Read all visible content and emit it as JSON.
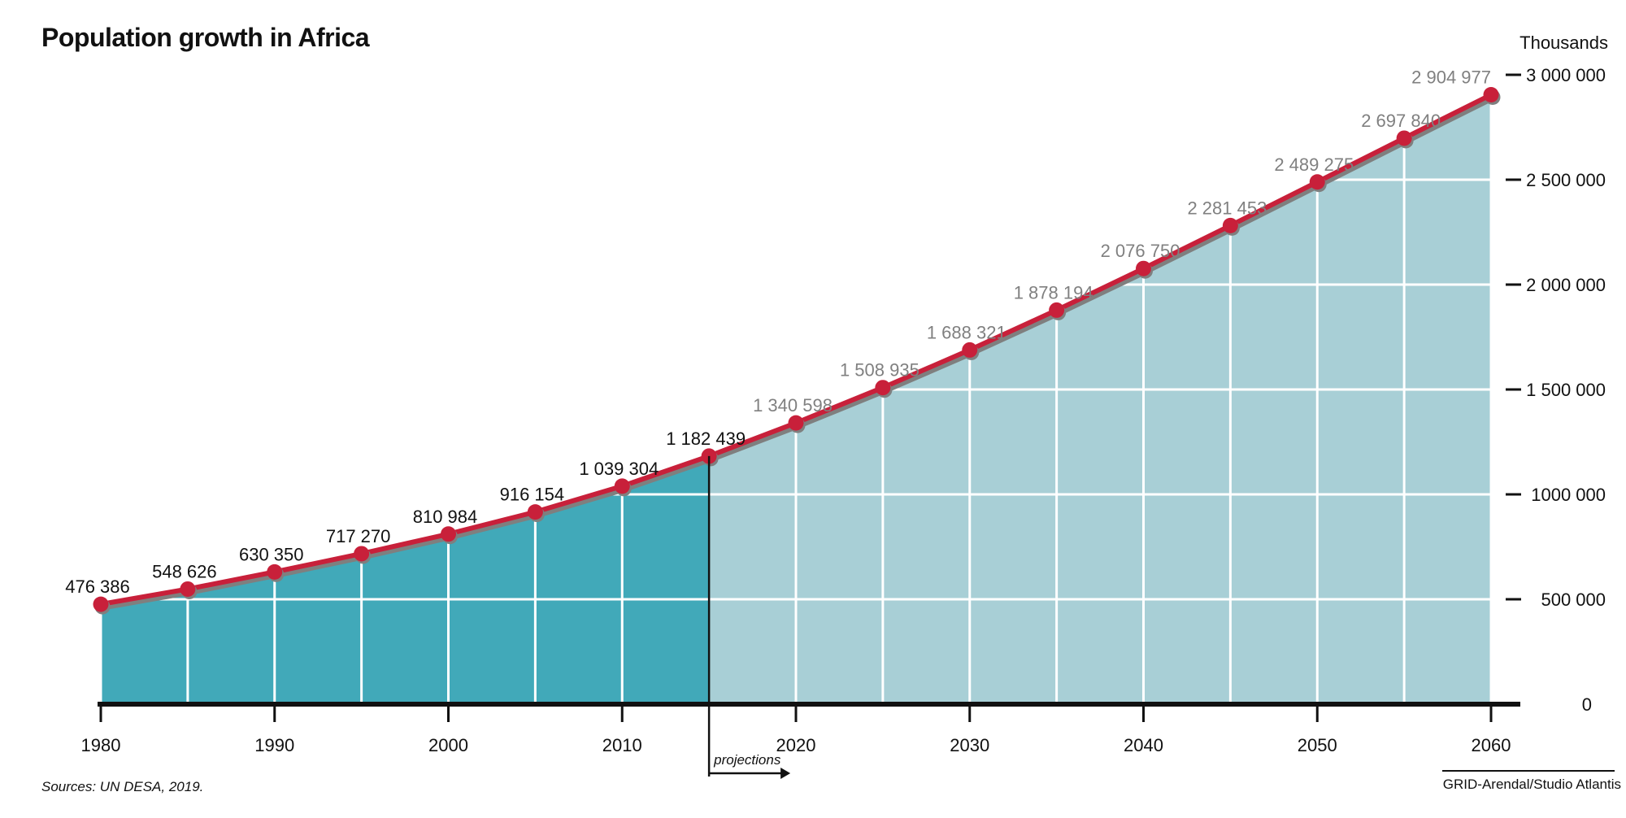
{
  "title": "Population growth in Africa",
  "source": "Sources: UN DESA, 2019.",
  "credit": "GRID-Arendal/Studio Atlantis",
  "colors": {
    "historical_area": "#41a9b9",
    "projection_area": "#a8cfd6",
    "line": "#c8203a",
    "line_shadow": "#7f7f7f",
    "historical_label": "#111111",
    "projection_label": "#808080"
  },
  "chart_data": {
    "type": "area",
    "x": [
      1980,
      1985,
      1990,
      1995,
      2000,
      2005,
      2010,
      2015,
      2020,
      2025,
      2030,
      2035,
      2040,
      2045,
      2050,
      2055,
      2060
    ],
    "values": [
      476386,
      548626,
      630350,
      717270,
      810984,
      916154,
      1039304,
      1182439,
      1340598,
      1508935,
      1688321,
      1878194,
      2076750,
      2281453,
      2489275,
      2697840,
      2904977
    ],
    "data_labels": [
      "476 386",
      "548 626",
      "630 350",
      "717 270",
      "810 984",
      "916 154",
      "1 039 304",
      "1 182 439",
      "1 340 598",
      "1 508 935",
      "1 688 321",
      "1 878  194",
      "2 076 750",
      "2 281 453",
      "2 489 275",
      "2 697 840",
      "2 904 977"
    ],
    "projection_start": 2015,
    "projection_label": "projections",
    "xlim": [
      1980,
      2060
    ],
    "ylim": [
      0,
      3000000
    ],
    "x_ticks": [
      1980,
      1990,
      2000,
      2010,
      2020,
      2030,
      2040,
      2050,
      2060
    ],
    "y_ticks": [
      {
        "value": 0,
        "label": "0"
      },
      {
        "value": 500000,
        "label": "500 000"
      },
      {
        "value": 1000000,
        "label": "1000 000"
      },
      {
        "value": 1500000,
        "label": "1 500 000"
      },
      {
        "value": 2000000,
        "label": "2 000 000"
      },
      {
        "value": 2500000,
        "label": "2 500 000"
      },
      {
        "value": 3000000,
        "label": "3 000 000"
      }
    ],
    "ylabel": "Thousands",
    "y_axis_position": "right",
    "grid": true
  }
}
